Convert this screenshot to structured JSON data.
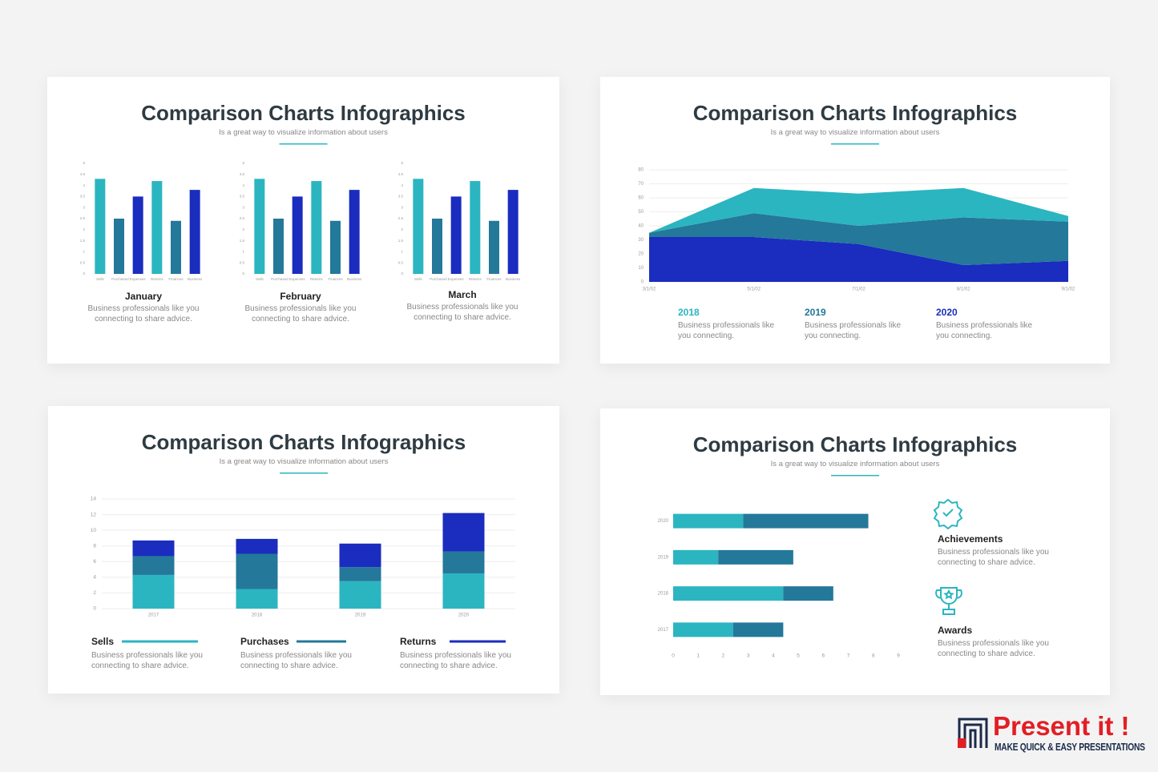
{
  "slides": [
    {
      "title": "Comparison Charts Infographics",
      "subtitle": "Is a great way to visualize information about users"
    },
    {
      "title": "Comparison Charts Infographics",
      "subtitle": "Is a great way to visualize information about users"
    },
    {
      "title": "Comparison Charts Infographics",
      "subtitle": "Is a great way to visualize information about users"
    },
    {
      "title": "Comparison Charts Infographics",
      "subtitle": "Is a great way to visualize information about users"
    }
  ],
  "chart_data": [
    {
      "type": "bar",
      "title": "January",
      "description": "Business professionals like you connecting to share advice.",
      "categories": [
        "Sells",
        "Purchased Expenses",
        null,
        "Returns",
        "Finances",
        "Business"
      ],
      "values": [
        4.3,
        2.5,
        3.5,
        4.2,
        2.4,
        3.8
      ],
      "colors": [
        "#2bb5c0",
        "#24789a",
        "#1a2dbf",
        "#2bb5c0",
        "#24789a",
        "#1a2dbf"
      ],
      "ylim": [
        0,
        5
      ],
      "yticks": [
        0,
        0.5,
        1,
        1.5,
        2,
        2.5,
        3,
        3.5,
        4,
        4.5,
        5
      ]
    },
    {
      "type": "bar",
      "title": "February",
      "description": "Business professionals like you connecting to share advice.",
      "categories": [
        "Sells",
        "Purchased Expenses",
        null,
        "Returns",
        "Finances",
        "Business"
      ],
      "values": [
        4.3,
        2.5,
        3.5,
        4.2,
        2.4,
        3.8
      ],
      "colors": [
        "#2bb5c0",
        "#24789a",
        "#1a2dbf",
        "#2bb5c0",
        "#24789a",
        "#1a2dbf"
      ],
      "ylim": [
        0,
        5
      ],
      "yticks": [
        0,
        0.5,
        1,
        1.5,
        2,
        2.5,
        3,
        3.5,
        4,
        4.5,
        5
      ]
    },
    {
      "type": "bar",
      "title": "March",
      "description": "Business professionals like you connecting to share advice.",
      "categories": [
        "Sells",
        "Purchased Expenses",
        null,
        "Returns",
        "Finances",
        "Business"
      ],
      "values": [
        4.3,
        2.5,
        3.5,
        4.2,
        2.4,
        3.8
      ],
      "colors": [
        "#2bb5c0",
        "#24789a",
        "#1a2dbf",
        "#2bb5c0",
        "#24789a",
        "#1a2dbf"
      ],
      "ylim": [
        0,
        5
      ],
      "yticks": [
        0,
        0.5,
        1,
        1.5,
        2,
        2.5,
        3,
        3.5,
        4,
        4.5,
        5
      ]
    },
    {
      "type": "area",
      "stacked": true,
      "categories": [
        "3/1/02",
        "5/1/02",
        "7/1/02",
        "8/1/02",
        "9/1/02"
      ],
      "series": [
        {
          "name": "2018",
          "description": "Business professionals like you connecting.",
          "color": "#2bb5c0",
          "values": [
            0,
            18,
            23,
            21,
            4
          ]
        },
        {
          "name": "2019",
          "description": "Business professionals like you connecting.",
          "color": "#24789a",
          "values": [
            3,
            17,
            13,
            34,
            28
          ]
        },
        {
          "name": "2020",
          "description": "Business professionals like you connecting.",
          "color": "#1a2dbf",
          "values": [
            32,
            32,
            27,
            12,
            15
          ]
        }
      ],
      "ylim": [
        0,
        80
      ],
      "yticks": [
        0,
        10,
        20,
        30,
        40,
        50,
        60,
        70,
        80
      ],
      "grid": true
    },
    {
      "type": "stacked_bar",
      "categories": [
        "2017",
        "2018",
        "2019",
        "2020"
      ],
      "series": [
        {
          "name": "Sells",
          "description": "Business professionals like you connecting to share advice.",
          "color": "#2bb5c0",
          "values": [
            4.3,
            2.5,
            3.5,
            4.5
          ]
        },
        {
          "name": "Purchases",
          "description": "Business professionals like you connecting to share advice.",
          "color": "#24789a",
          "values": [
            2.4,
            4.5,
            1.8,
            2.8
          ]
        },
        {
          "name": "Returns",
          "description": "Business professionals like you connecting to share advice.",
          "color": "#1a2dbf",
          "values": [
            2.0,
            1.9,
            3.0,
            4.9
          ]
        }
      ],
      "ylim": [
        0,
        14
      ],
      "yticks": [
        0,
        2,
        4,
        6,
        8,
        10,
        12,
        14
      ],
      "grid": true
    },
    {
      "type": "stacked_barh",
      "categories": [
        "2020",
        "2019",
        "2018",
        "2017"
      ],
      "series": [
        {
          "color": "#2bb5c0",
          "values": [
            2.8,
            1.8,
            4.4,
            2.4
          ]
        },
        {
          "color": "#24789a",
          "values": [
            5.0,
            3.0,
            2.0,
            2.0
          ]
        }
      ],
      "xlim": [
        0,
        9
      ],
      "xticks": [
        0,
        1,
        2,
        3,
        4,
        5,
        6,
        7,
        8,
        9
      ]
    }
  ],
  "features": [
    {
      "title": "Achievements",
      "text": "Business professionals like you connecting to share advice."
    },
    {
      "title": "Awards",
      "text": "Business professionals like you connecting to share advice."
    }
  ],
  "brand": {
    "name": "Present it !",
    "tagline": "MAKE QUICK & EASY PRESENTATIONS"
  }
}
